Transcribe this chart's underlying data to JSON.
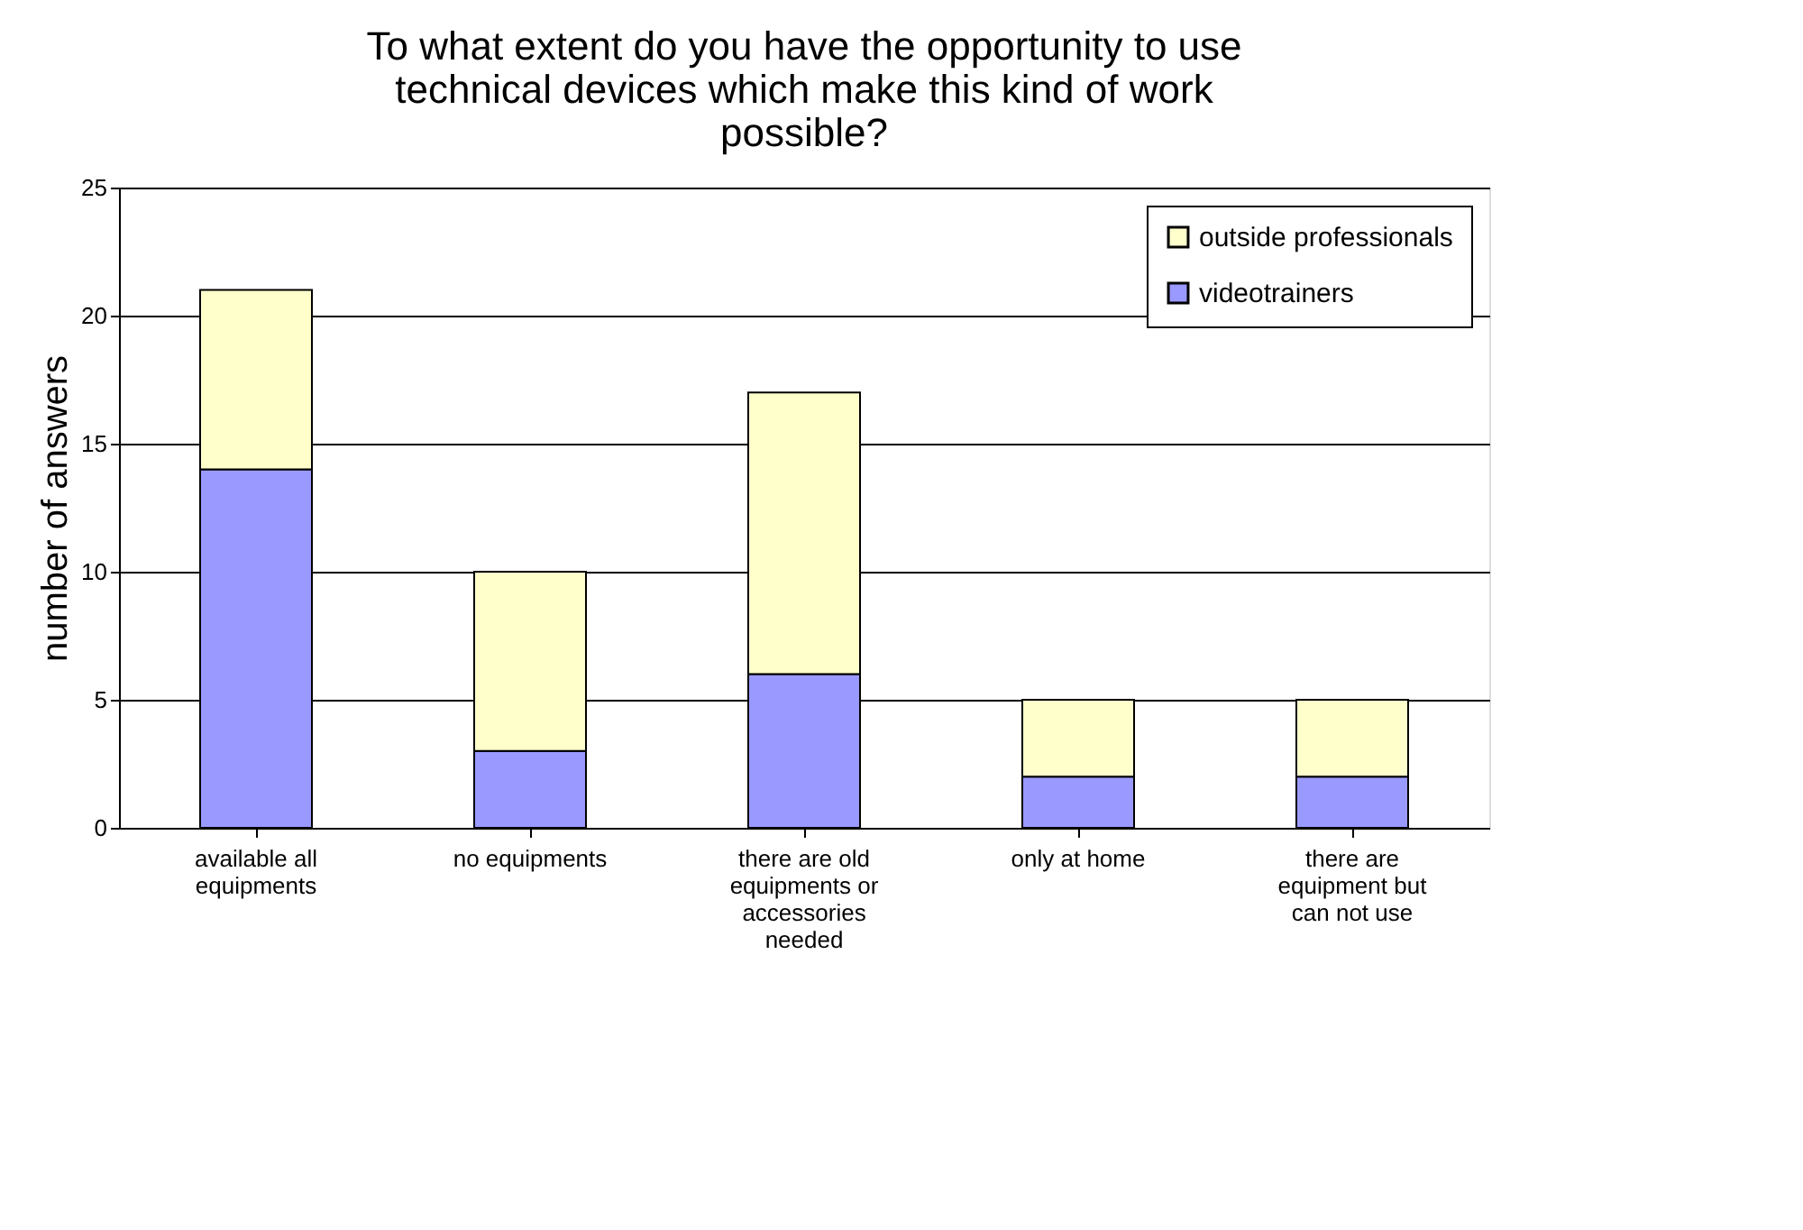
{
  "chart_data": {
    "type": "bar",
    "title": "To what extent do you have the opportunity to use technical devices which make this kind of work possible?",
    "ylabel": "number of answers",
    "categories": [
      "available all equipments",
      "no equipments",
      "there are old equipments or accessories needed",
      "only at home",
      "there are equipment but can not use"
    ],
    "stacked": true,
    "series": [
      {
        "name": "videotrainers",
        "color": "#9999ff",
        "values": [
          14,
          3,
          6,
          2,
          2
        ]
      },
      {
        "name": "outside professionals",
        "color": "#ffffcc",
        "values": [
          7,
          7,
          11,
          3,
          3
        ]
      }
    ],
    "ylim": [
      0,
      25
    ],
    "yticks": [
      0,
      5,
      10,
      15,
      20,
      25
    ],
    "grid": "y",
    "legend": "top right"
  }
}
